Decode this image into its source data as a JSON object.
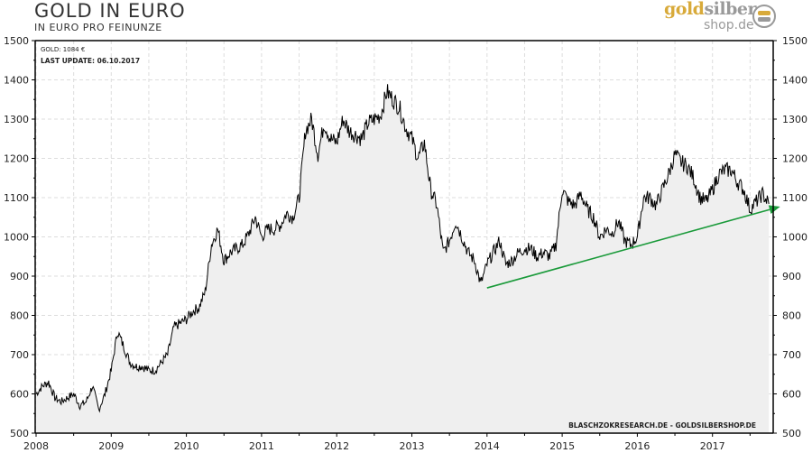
{
  "header": {
    "title": "GOLD  IN  EURO",
    "subtitle": "IN  EURO  PRO  FEINUNZE"
  },
  "logo": {
    "text_gold": "gold",
    "text_silver": "silber",
    "text_domain": "shop.de"
  },
  "info": {
    "gold_label": "GOLD: 1084 €",
    "last_update": "LAST UPDATE: 06.10.2017"
  },
  "credit": "BLASCHZOKRESEARCH.DE  -  GOLDSILBERSHOP.DE",
  "chart_data": {
    "type": "area",
    "title": "GOLD IN EURO",
    "ylabel": "IN EURO PRO FEINUNZE",
    "xlim": [
      2008,
      2017.85
    ],
    "ylim": [
      500,
      1500
    ],
    "yticks": [
      500,
      600,
      700,
      800,
      900,
      1000,
      1100,
      1200,
      1300,
      1400,
      1500
    ],
    "xticks": [
      2008,
      2009,
      2010,
      2011,
      2012,
      2013,
      2014,
      2015,
      2016,
      2017
    ],
    "grid": true,
    "colors": {
      "line": "#000000",
      "fill": "#efefef",
      "trend": "#1a9a3a"
    },
    "start_year": 2008,
    "monthly_values": [
      600,
      620,
      630,
      590,
      580,
      590,
      600,
      570,
      580,
      620,
      560,
      600,
      660,
      760,
      720,
      680,
      670,
      670,
      660,
      660,
      680,
      700,
      770,
      780,
      790,
      810,
      820,
      860,
      980,
      1020,
      940,
      960,
      970,
      980,
      1010,
      1050,
      1000,
      1020,
      1020,
      1030,
      1060,
      1050,
      1100,
      1270,
      1300,
      1210,
      1290,
      1250,
      1240,
      1300,
      1270,
      1260,
      1250,
      1290,
      1300,
      1310,
      1370,
      1350,
      1330,
      1280,
      1250,
      1200,
      1240,
      1120,
      1080,
      960,
      990,
      1040,
      1000,
      960,
      940,
      880,
      930,
      960,
      990,
      930,
      940,
      960,
      970,
      970,
      950,
      960,
      950,
      980,
      1120,
      1090,
      1080,
      1110,
      1070,
      1050,
      1000,
      1020,
      1010,
      1040,
      990,
      980,
      1000,
      1100,
      1100,
      1080,
      1120,
      1160,
      1210,
      1190,
      1180,
      1150,
      1100,
      1090,
      1120,
      1160,
      1170,
      1170,
      1140,
      1120,
      1070,
      1090,
      1110,
      1084
    ],
    "trendline": {
      "from": [
        2014.0,
        870
      ],
      "to": [
        2017.9,
        1077
      ]
    }
  }
}
